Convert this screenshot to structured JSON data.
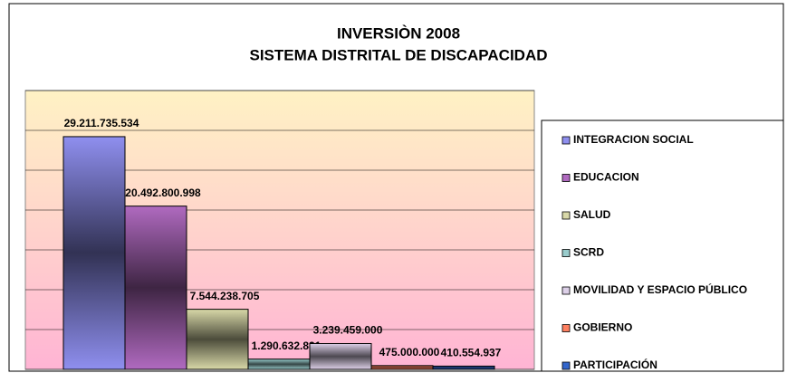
{
  "chart_data": {
    "type": "bar",
    "title": "INVERSIÒN 2008",
    "subtitle": "SISTEMA DISTRITAL DE DISCAPACIDAD",
    "categories": [
      "INTEGRACION SOCIAL",
      "EDUCACION",
      "SALUD",
      "SCRD",
      "MOVILIDAD Y ESPACIO PÚBLICO",
      "GOBIERNO",
      "PARTICIPACIÓN"
    ],
    "values": [
      29211735534,
      20492800998,
      7544238705,
      1290632831,
      3239459000,
      475000000,
      410554937
    ],
    "value_labels": [
      "29.211.735.534",
      "20.492.800.998",
      "7.544.238.705",
      "1.290.632.831",
      "3.239.459.000",
      "475.000.000",
      "410.554.937"
    ],
    "colors": [
      "#8f8fef",
      "#b06ac0",
      "#d8d8a8",
      "#99cccc",
      "#ddd0e8",
      "#ff8060",
      "#3366cc"
    ],
    "ylim": [
      0,
      35000000000
    ],
    "yticks": [
      0,
      5000000000,
      10000000000,
      15000000000,
      20000000000,
      25000000000,
      30000000000,
      35000000000
    ],
    "grid": true,
    "legend": "right"
  }
}
